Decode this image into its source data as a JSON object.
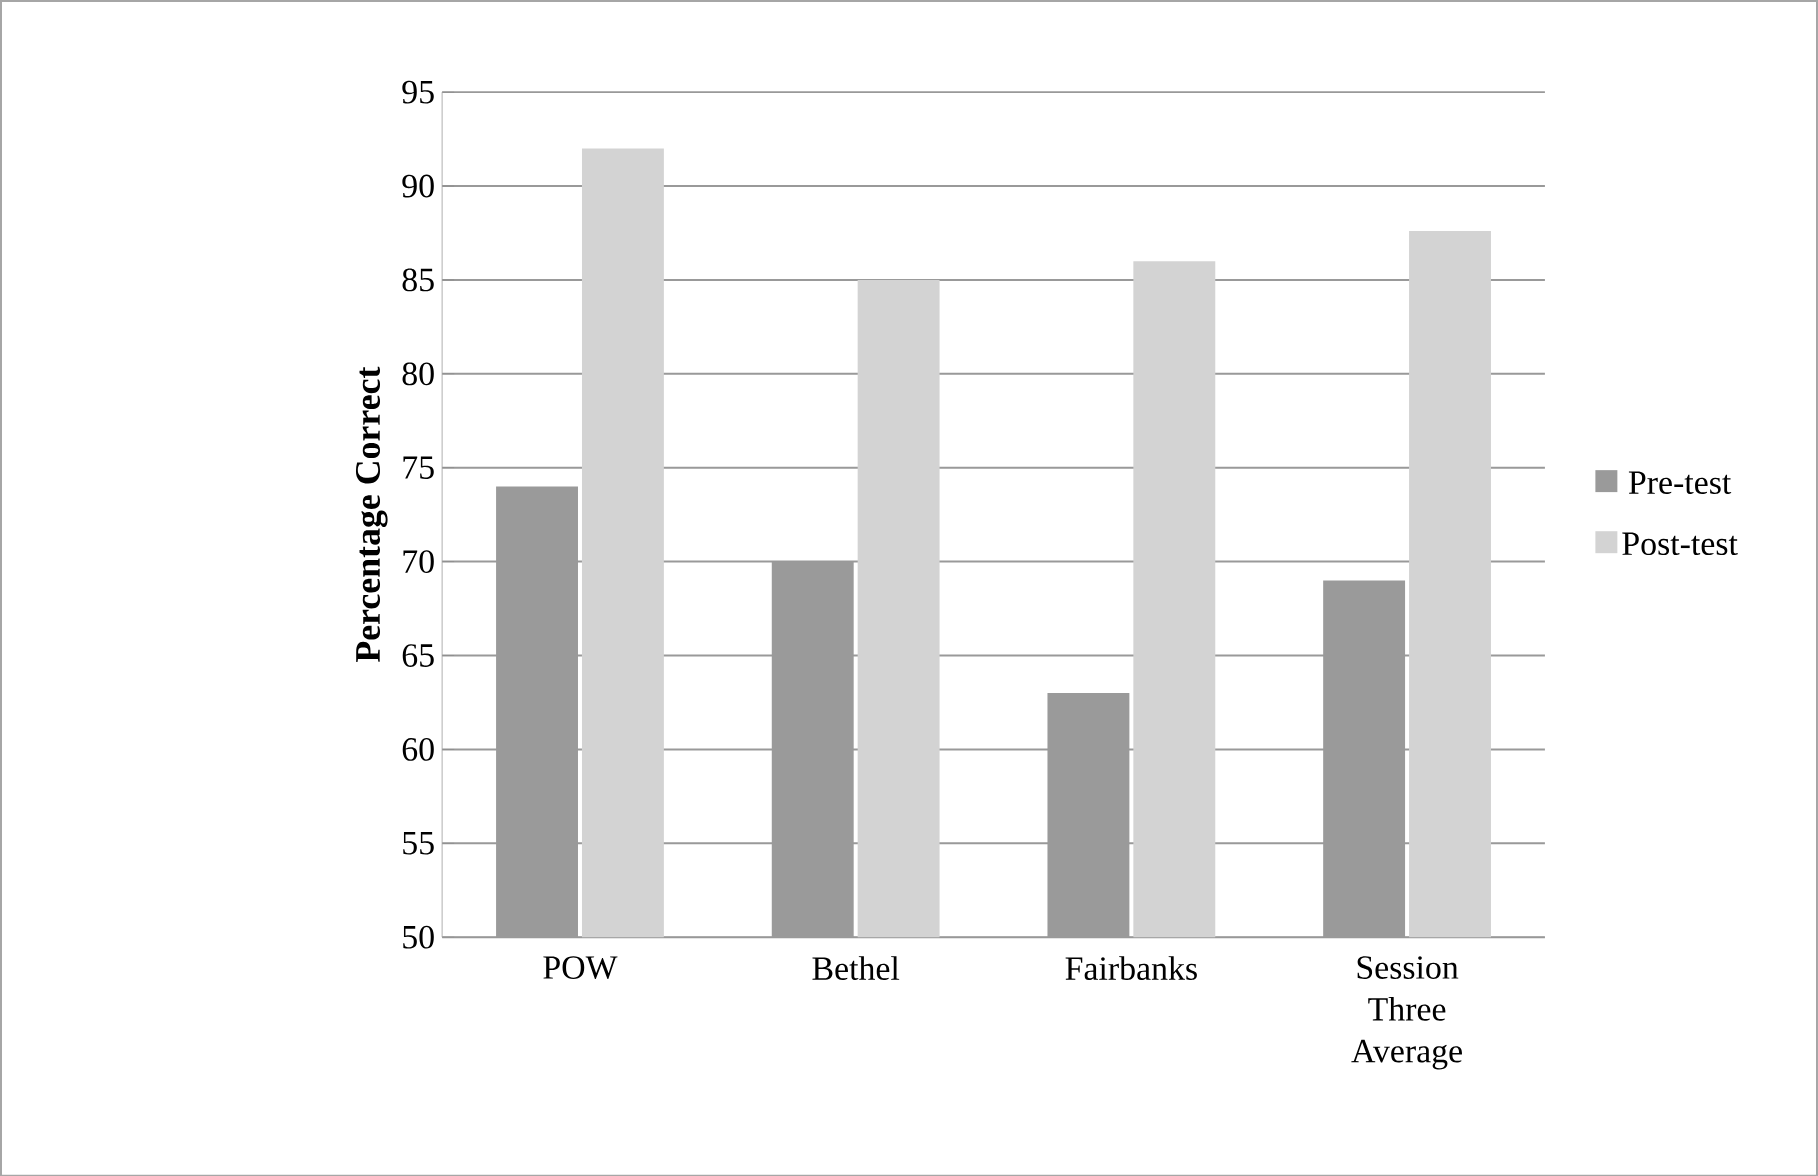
{
  "chart_data": {
    "type": "bar",
    "ylabel": "Percentage Correct",
    "categories": [
      "POW",
      "Bethel",
      "Fairbanks",
      "Session Three Average"
    ],
    "series": [
      {
        "name": "Pre-test",
        "color": "#9a9a9a",
        "values": [
          74,
          70,
          63,
          69
        ]
      },
      {
        "name": "Post-test",
        "color": "#d3d3d3",
        "values": [
          92,
          85,
          86,
          87.6
        ]
      }
    ],
    "ylim": [
      50,
      95
    ],
    "yticks": [
      50,
      55,
      60,
      65,
      70,
      75,
      80,
      85,
      90,
      95
    ],
    "grid": "y",
    "legend": "right"
  }
}
